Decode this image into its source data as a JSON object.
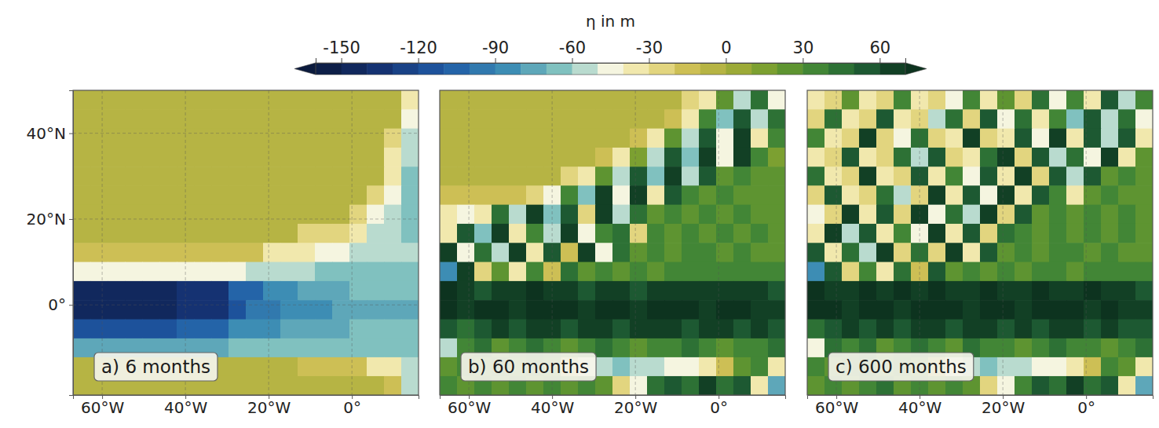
{
  "colorbar": {
    "label": "η in m",
    "lim": [
      -160,
      70
    ],
    "ticks": [
      -150,
      -120,
      -90,
      -60,
      -30,
      0,
      30,
      60
    ]
  },
  "chart_data": [
    {
      "type": "heatmap",
      "title": "a) 6 months",
      "grid": true,
      "xlim": [
        -67,
        16
      ],
      "ylim": [
        -21,
        50
      ],
      "xticks": [
        {
          "value": -60,
          "label": "60°W"
        },
        {
          "value": -40,
          "label": "40°W"
        },
        {
          "value": -20,
          "label": "20°W"
        },
        {
          "value": 0,
          "label": "0°"
        }
      ],
      "yticks": [
        {
          "value": 0,
          "label": "0°"
        },
        {
          "value": 20,
          "label": "20°N"
        },
        {
          "value": 40,
          "label": "40°N"
        }
      ],
      "x": [
        -64.9,
        -60.8,
        -56.6,
        -52.5,
        -48.3,
        -44.2,
        -40.0,
        -35.9,
        -31.7,
        -27.6,
        -23.4,
        -19.3,
        -15.1,
        -11.0,
        -6.8,
        -2.7,
        1.5,
        5.6,
        9.8,
        13.9
      ],
      "y": [
        47.8,
        43.3,
        38.9,
        34.4,
        30.0,
        25.6,
        21.1,
        16.7,
        12.2,
        7.8,
        3.3,
        -1.1,
        -5.6,
        -10.0,
        -14.4,
        -18.8
      ],
      "values": [
        [
          -5,
          -5,
          -5,
          -5,
          -5,
          -5,
          -5,
          -5,
          -5,
          -5,
          -5,
          -5,
          -5,
          -5,
          -5,
          -5,
          -5,
          -5,
          -5,
          -40
        ],
        [
          -5,
          -5,
          -5,
          -5,
          -5,
          -5,
          -5,
          -5,
          -5,
          -5,
          -5,
          -5,
          -5,
          -5,
          -5,
          -5,
          -5,
          -5,
          -5,
          -50
        ],
        [
          -5,
          -5,
          -5,
          -5,
          -5,
          -5,
          -5,
          -5,
          -5,
          -5,
          -5,
          -5,
          -5,
          -5,
          -5,
          -5,
          -5,
          -5,
          -30,
          -60
        ],
        [
          -5,
          -5,
          -5,
          -5,
          -5,
          -5,
          -5,
          -5,
          -5,
          -5,
          -5,
          -5,
          -5,
          -5,
          -5,
          -5,
          -5,
          -5,
          -35,
          -60
        ],
        [
          -5,
          -5,
          -5,
          -5,
          -5,
          -5,
          -5,
          -5,
          -5,
          -5,
          -5,
          -5,
          -5,
          -5,
          -5,
          -5,
          -5,
          -5,
          -40,
          -65
        ],
        [
          -5,
          -5,
          -5,
          -5,
          -5,
          -5,
          -5,
          -5,
          -5,
          -5,
          -5,
          -5,
          -5,
          -5,
          -5,
          -5,
          -5,
          -30,
          -50,
          -65
        ],
        [
          -5,
          -5,
          -5,
          -5,
          -5,
          -5,
          -5,
          -5,
          -5,
          -5,
          -5,
          -5,
          -5,
          -5,
          -5,
          -5,
          -30,
          -45,
          -60,
          -65
        ],
        [
          -8,
          -8,
          -8,
          -8,
          -8,
          -8,
          -8,
          -8,
          -8,
          -8,
          -8,
          -8,
          -8,
          -25,
          -25,
          -25,
          -40,
          -55,
          -60,
          -65
        ],
        [
          -20,
          -20,
          -20,
          -20,
          -20,
          -20,
          -20,
          -20,
          -20,
          -20,
          -20,
          -35,
          -35,
          -35,
          -50,
          -50,
          -60,
          -60,
          -60,
          -60
        ],
        [
          -50,
          -50,
          -50,
          -50,
          -50,
          -50,
          -50,
          -50,
          -50,
          -50,
          -60,
          -60,
          -60,
          -60,
          -65,
          -65,
          -65,
          -65,
          -65,
          -65
        ],
        [
          -145,
          -145,
          -145,
          -145,
          -145,
          -145,
          -135,
          -135,
          -135,
          -110,
          -110,
          -90,
          -90,
          -80,
          -80,
          -80,
          -70,
          -70,
          -70,
          -70
        ],
        [
          -150,
          -150,
          -150,
          -150,
          -150,
          -150,
          -140,
          -140,
          -140,
          -115,
          -95,
          -95,
          -85,
          -85,
          -85,
          -75,
          -75,
          -75,
          -75,
          -75
        ],
        [
          -120,
          -120,
          -120,
          -120,
          -120,
          -120,
          -110,
          -110,
          -110,
          -85,
          -85,
          -85,
          -75,
          -75,
          -75,
          -75,
          -70,
          -70,
          -70,
          -70
        ],
        [
          -75,
          -75,
          -75,
          -75,
          -75,
          -75,
          -75,
          -75,
          -75,
          -65,
          -65,
          -65,
          -65,
          -65,
          -65,
          -65,
          -65,
          -65,
          -65,
          -65
        ],
        [
          -10,
          -10,
          -10,
          -10,
          -10,
          -10,
          -10,
          -10,
          -10,
          -10,
          -10,
          -10,
          -10,
          -20,
          -20,
          -20,
          -20,
          -40,
          -40,
          -60
        ],
        [
          -5,
          -5,
          -5,
          -5,
          -5,
          -5,
          -5,
          -5,
          -5,
          -5,
          -5,
          -5,
          -5,
          -5,
          -5,
          -5,
          -5,
          -5,
          -20,
          -60
        ]
      ]
    },
    {
      "type": "heatmap",
      "title": "b) 60 months",
      "grid": true,
      "tick_labels": "x",
      "xlim": [
        -67,
        16
      ],
      "ylim": [
        -21,
        50
      ],
      "xticks": [
        {
          "value": -60,
          "label": "60°W"
        },
        {
          "value": -40,
          "label": "40°W"
        },
        {
          "value": -20,
          "label": "20°W"
        },
        {
          "value": 0,
          "label": "0°"
        }
      ],
      "x": [
        -64.9,
        -60.8,
        -56.6,
        -52.5,
        -48.3,
        -44.2,
        -40.0,
        -35.9,
        -31.7,
        -27.6,
        -23.4,
        -19.3,
        -15.1,
        -11.0,
        -6.8,
        -2.7,
        1.5,
        5.6,
        9.8,
        13.9
      ],
      "y": [
        47.8,
        43.3,
        38.9,
        34.4,
        30.0,
        25.6,
        21.1,
        16.7,
        12.2,
        7.8,
        3.3,
        -1.1,
        -5.6,
        -10.0,
        -14.4,
        -18.8
      ],
      "values": [
        [
          -8,
          -8,
          -8,
          -8,
          -8,
          -8,
          -8,
          -8,
          -8,
          -8,
          -8,
          -8,
          -8,
          -8,
          -30,
          -40,
          20,
          -60,
          40,
          -50
        ],
        [
          -8,
          -8,
          -8,
          -8,
          -8,
          -8,
          -8,
          -8,
          -8,
          -8,
          -8,
          -8,
          -8,
          -20,
          -40,
          30,
          -70,
          50,
          -60,
          40
        ],
        [
          -8,
          -8,
          -8,
          -8,
          -8,
          -8,
          -8,
          -8,
          -8,
          -8,
          -8,
          -20,
          -40,
          20,
          -60,
          50,
          -50,
          60,
          -40,
          30
        ],
        [
          -8,
          -8,
          -8,
          -8,
          -8,
          -8,
          -8,
          -8,
          -8,
          -20,
          -40,
          10,
          -60,
          50,
          -70,
          60,
          -50,
          60,
          30,
          10
        ],
        [
          -10,
          -10,
          -10,
          -10,
          -10,
          -10,
          -10,
          -25,
          -40,
          20,
          -60,
          50,
          -70,
          60,
          -60,
          50,
          20,
          30,
          20,
          20
        ],
        [
          -15,
          -15,
          -15,
          -15,
          -15,
          -30,
          -45,
          30,
          -70,
          60,
          -50,
          60,
          -40,
          50,
          30,
          20,
          30,
          20,
          20,
          20
        ],
        [
          -35,
          -45,
          -40,
          40,
          -60,
          60,
          -70,
          50,
          -30,
          60,
          -60,
          40,
          20,
          30,
          20,
          30,
          20,
          30,
          20,
          20
        ],
        [
          -40,
          50,
          -70,
          60,
          -40,
          30,
          -60,
          60,
          -50,
          30,
          40,
          -30,
          30,
          20,
          30,
          20,
          30,
          20,
          30,
          20
        ],
        [
          60,
          -50,
          40,
          -60,
          60,
          -40,
          50,
          -20,
          60,
          -50,
          40,
          20,
          30,
          20,
          30,
          30,
          20,
          30,
          20,
          20
        ],
        [
          -90,
          60,
          -30,
          20,
          -40,
          30,
          -20,
          40,
          20,
          30,
          20,
          30,
          20,
          30,
          30,
          30,
          30,
          30,
          30,
          30
        ],
        [
          70,
          60,
          50,
          60,
          60,
          70,
          60,
          60,
          50,
          60,
          60,
          50,
          60,
          60,
          60,
          60,
          60,
          60,
          60,
          50
        ],
        [
          70,
          65,
          70,
          70,
          65,
          70,
          70,
          70,
          65,
          70,
          70,
          65,
          70,
          70,
          70,
          65,
          70,
          70,
          65,
          60
        ],
        [
          50,
          40,
          50,
          60,
          50,
          60,
          60,
          50,
          60,
          60,
          50,
          60,
          60,
          60,
          50,
          60,
          60,
          50,
          60,
          50
        ],
        [
          -60,
          30,
          40,
          20,
          30,
          40,
          30,
          20,
          30,
          40,
          30,
          20,
          30,
          30,
          40,
          30,
          20,
          30,
          30,
          40
        ],
        [
          20,
          30,
          20,
          30,
          20,
          30,
          20,
          -30,
          -50,
          -60,
          -65,
          -60,
          -55,
          -50,
          -45,
          -40,
          -20,
          20,
          30,
          -40
        ],
        [
          30,
          20,
          30,
          20,
          30,
          20,
          30,
          20,
          30,
          20,
          -30,
          -45,
          40,
          50,
          40,
          60,
          40,
          50,
          -40,
          -80
        ]
      ]
    },
    {
      "type": "heatmap",
      "title": "c) 600 months",
      "grid": true,
      "tick_labels": "x",
      "xlim": [
        -67,
        16
      ],
      "ylim": [
        -21,
        50
      ],
      "xticks": [
        {
          "value": -60,
          "label": "60°W"
        },
        {
          "value": -40,
          "label": "40°W"
        },
        {
          "value": -20,
          "label": "20°W"
        },
        {
          "value": 0,
          "label": "0°"
        }
      ],
      "x": [
        -64.9,
        -60.8,
        -56.6,
        -52.5,
        -48.3,
        -44.2,
        -40.0,
        -35.9,
        -31.7,
        -27.6,
        -23.4,
        -19.3,
        -15.1,
        -11.0,
        -6.8,
        -2.7,
        1.5,
        5.6,
        9.8,
        13.9
      ],
      "y": [
        47.8,
        43.3,
        38.9,
        34.4,
        30.0,
        25.6,
        21.1,
        16.7,
        12.2,
        7.8,
        3.3,
        -1.1,
        -5.6,
        -10.0,
        -14.4,
        -18.8
      ],
      "values": [
        [
          -40,
          -30,
          20,
          -40,
          -30,
          30,
          -40,
          -30,
          -50,
          30,
          -40,
          20,
          -30,
          40,
          -50,
          30,
          -40,
          50,
          -60,
          30
        ],
        [
          -30,
          40,
          -40,
          -30,
          50,
          -40,
          -30,
          -60,
          40,
          -30,
          50,
          -50,
          40,
          -40,
          30,
          -70,
          50,
          -60,
          40,
          -50
        ],
        [
          30,
          -40,
          -30,
          60,
          -30,
          -50,
          40,
          -30,
          -40,
          60,
          -30,
          -40,
          50,
          -50,
          60,
          -40,
          50,
          -60,
          50,
          -40
        ],
        [
          -40,
          -30,
          50,
          -40,
          -30,
          40,
          -60,
          50,
          -30,
          -40,
          40,
          60,
          -30,
          50,
          -60,
          40,
          -50,
          60,
          -40,
          20
        ],
        [
          40,
          -40,
          -30,
          60,
          -40,
          -30,
          50,
          -40,
          30,
          -50,
          50,
          -40,
          60,
          -30,
          50,
          -60,
          50,
          20,
          30,
          20
        ],
        [
          -30,
          50,
          -40,
          -30,
          40,
          -60,
          -30,
          60,
          -40,
          50,
          -50,
          60,
          -40,
          50,
          30,
          -40,
          20,
          30,
          20,
          20
        ],
        [
          -50,
          -30,
          60,
          -40,
          50,
          -30,
          60,
          -50,
          40,
          -60,
          60,
          -30,
          50,
          20,
          30,
          20,
          30,
          20,
          30,
          20
        ],
        [
          -40,
          60,
          -60,
          50,
          -40,
          30,
          -50,
          60,
          -40,
          50,
          -30,
          40,
          30,
          20,
          30,
          20,
          30,
          20,
          30,
          20
        ],
        [
          50,
          -40,
          40,
          -60,
          60,
          -30,
          40,
          -30,
          60,
          -40,
          50,
          20,
          30,
          20,
          30,
          30,
          20,
          30,
          20,
          20
        ],
        [
          -90,
          50,
          -30,
          30,
          -40,
          40,
          -20,
          50,
          20,
          30,
          20,
          30,
          20,
          30,
          30,
          20,
          30,
          30,
          30,
          30
        ],
        [
          70,
          60,
          60,
          70,
          60,
          70,
          60,
          70,
          60,
          60,
          70,
          60,
          60,
          70,
          60,
          60,
          70,
          60,
          60,
          50
        ],
        [
          70,
          70,
          65,
          70,
          70,
          65,
          70,
          70,
          70,
          65,
          70,
          70,
          65,
          70,
          70,
          70,
          65,
          70,
          60,
          60
        ],
        [
          40,
          50,
          60,
          50,
          60,
          50,
          60,
          60,
          50,
          60,
          60,
          50,
          60,
          50,
          60,
          60,
          50,
          60,
          50,
          50
        ],
        [
          -50,
          40,
          30,
          40,
          20,
          30,
          40,
          30,
          20,
          40,
          30,
          30,
          20,
          30,
          40,
          30,
          30,
          20,
          30,
          40
        ],
        [
          30,
          20,
          30,
          40,
          20,
          30,
          20,
          -20,
          -45,
          -55,
          -65,
          -60,
          -55,
          -50,
          -45,
          -35,
          -20,
          30,
          20,
          -40
        ],
        [
          20,
          30,
          20,
          30,
          40,
          20,
          30,
          20,
          30,
          20,
          -25,
          -45,
          30,
          50,
          40,
          60,
          40,
          50,
          -40,
          -80
        ]
      ]
    }
  ]
}
